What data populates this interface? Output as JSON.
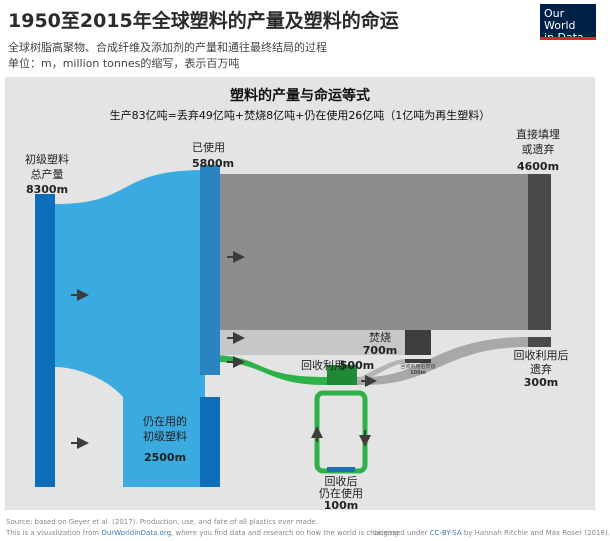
{
  "header": {
    "title": "1950至2015年全球塑料的产量及塑料的命运",
    "subtitle_line1": "全球树脂高聚物、合成纤维及添加剂的产量和通往最终结局的过程",
    "subtitle_line2": "单位：m，million tonnes的缩写，表示百万吨"
  },
  "logo": {
    "line1": "Our World",
    "line2": "in Data"
  },
  "diagram": {
    "title": "塑料的产量与命运等式",
    "equation": "生产83亿吨=丢弃49亿吨+焚烧8亿吨+仍在使用26亿吨（1亿吨为再生塑料）",
    "nodes": {
      "primary": {
        "label_line1": "初级塑料",
        "label_line2": "总产量",
        "value": "8300m"
      },
      "used": {
        "label": "已使用",
        "value": "5800m"
      },
      "in_use": {
        "label_line1": "仍在用的",
        "label_line2": "初级塑料",
        "value": "2500m"
      },
      "discarded": {
        "label_line1": "直接填埋",
        "label_line2": "或遗弃",
        "value": "4600m"
      },
      "incinerated": {
        "label": "焚烧",
        "value": "700m"
      },
      "recycled": {
        "label": "回收利用",
        "value": "500m"
      },
      "recycled_discarded": {
        "label_line1": "回收利用后",
        "label_line2": "遗弃",
        "value": "300m"
      },
      "recycled_in_use": {
        "label_line1": "回收后",
        "label_line2": "仍在使用",
        "value": "100m"
      },
      "recycled_incinerated": {
        "label": "回收利用后焚烧",
        "value": "100m"
      }
    },
    "colors": {
      "panel": "#e4e4e4",
      "primary_blue": "#0d6db8",
      "flow_blue": "#3aaae1",
      "used_blue": "#2a84bf",
      "discard_flow": "#8d8d8d",
      "discard_node": "#4a4a4a",
      "incinerate_flow": "#c7c7c7",
      "incinerate_node": "#3d3d3d",
      "recycle_flow": "#2db24a",
      "recycle_node": "#1e8a36",
      "recycled_in_use_node": "#1f6fb5",
      "arrow": "#3c3c3c"
    }
  },
  "footer": {
    "source": "Source: based on Geyer et al. (2017). Production, use, and fate of all plastics ever made.",
    "line2_prefix": "This is a visualization from ",
    "line2_link": "OurWorldinData.org",
    "line2_suffix": ", where you find data and research on how the world is changing.",
    "license_prefix": "Licensed under ",
    "license_link": "CC-BY-SA",
    "license_suffix": " by Hannah Ritchie and Max Roser (2018)."
  }
}
